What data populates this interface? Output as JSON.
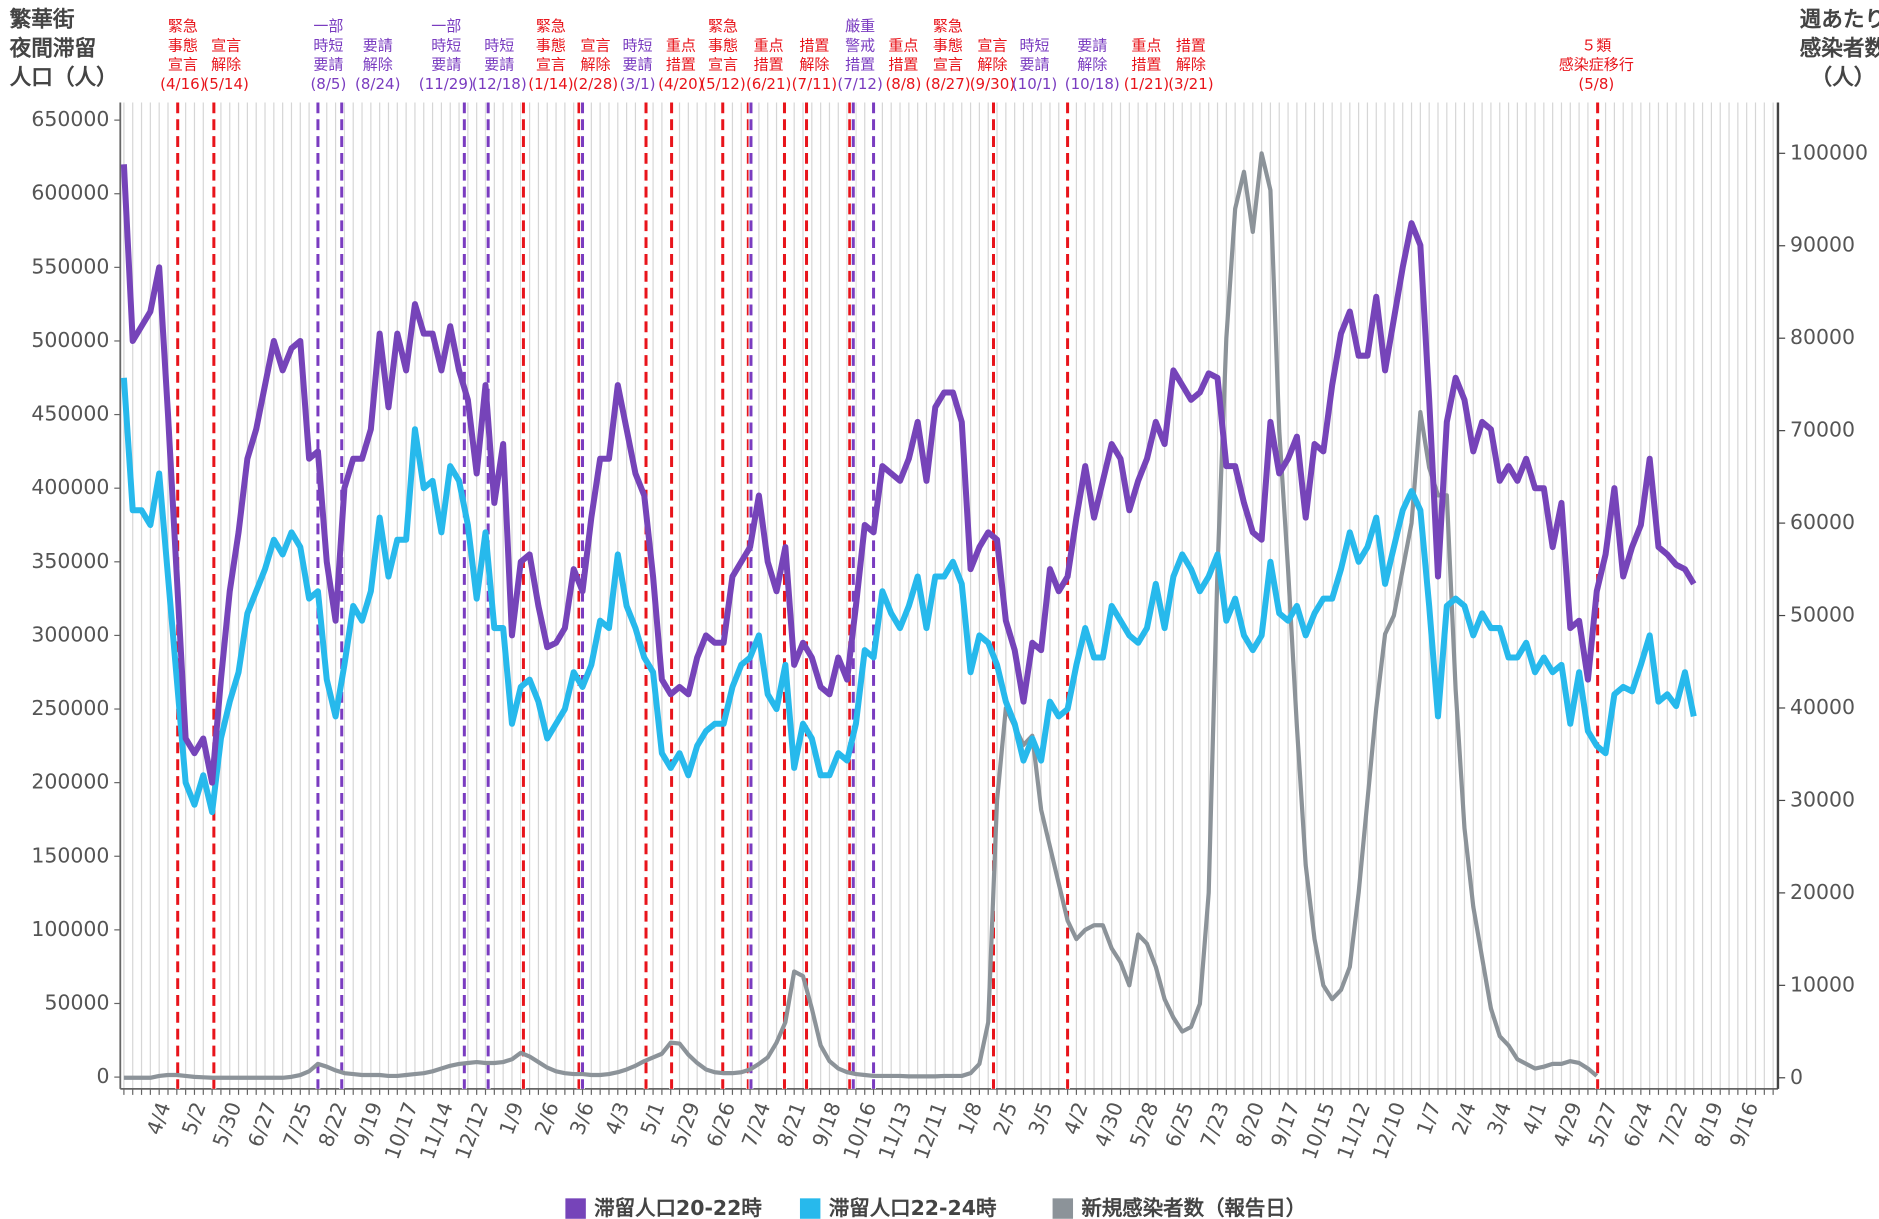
{
  "chart_data": {
    "type": "line",
    "y_label": [
      "繁華街",
      "夜間滞留",
      "人口（人）"
    ],
    "y2_label": [
      "週あたり",
      "感染者数",
      "（人）"
    ],
    "categories": [
      null,
      null,
      null,
      null,
      "4/4",
      null,
      null,
      null,
      "5/2",
      null,
      null,
      null,
      "5/30",
      null,
      null,
      null,
      "6/27",
      null,
      null,
      null,
      "7/25",
      null,
      null,
      null,
      "8/22",
      null,
      null,
      null,
      "9/19",
      null,
      null,
      null,
      "10/17",
      null,
      null,
      null,
      "11/14",
      null,
      null,
      null,
      "12/12",
      null,
      null,
      null,
      "1/9",
      null,
      null,
      null,
      "2/6",
      null,
      null,
      null,
      "3/6",
      null,
      null,
      null,
      "4/3",
      null,
      null,
      null,
      "5/1",
      null,
      null,
      null,
      "5/29",
      null,
      null,
      null,
      "6/26",
      null,
      null,
      null,
      "7/24",
      null,
      null,
      null,
      "8/21",
      null,
      null,
      null,
      "9/18",
      null,
      null,
      null,
      "10/16",
      null,
      null,
      null,
      "11/13",
      null,
      null,
      null,
      "12/11",
      null,
      null,
      null,
      "1/8",
      null,
      null,
      null,
      "2/5",
      null,
      null,
      null,
      "3/5",
      null,
      null,
      null,
      "4/2",
      null,
      null,
      null,
      "4/30",
      null,
      null,
      null,
      "5/28",
      null,
      null,
      null,
      "6/25",
      null,
      null,
      null,
      "7/23",
      null,
      null,
      null,
      "8/20",
      null,
      null,
      null,
      "9/17",
      null,
      null,
      null,
      "10/15",
      null,
      null,
      null,
      "11/12",
      null,
      null,
      null,
      "12/10",
      null,
      null,
      null,
      "1/7",
      null,
      null,
      null,
      "2/4",
      null,
      null,
      null,
      "3/4",
      null,
      null,
      null,
      "4/1",
      null,
      null,
      null,
      "4/29",
      null,
      null,
      null,
      "5/27",
      null,
      null,
      null,
      "6/24",
      null,
      null,
      null,
      "7/22",
      null,
      null,
      null,
      "8/19",
      null,
      null,
      null,
      "9/16",
      null,
      null,
      null
    ],
    "series": [
      {
        "name": "滞留人口20-22時",
        "color": "#7644b9",
        "values": [
          620000,
          500000,
          510000,
          520000,
          550000,
          450000,
          340000,
          230000,
          220000,
          230000,
          200000,
          270000,
          330000,
          370000,
          420000,
          440000,
          470000,
          500000,
          480000,
          495000,
          500000,
          420000,
          425000,
          350000,
          310000,
          400000,
          420000,
          420000,
          440000,
          505000,
          455000,
          505000,
          480000,
          525000,
          505000,
          505000,
          480000,
          510000,
          480000,
          460000,
          410000,
          470000,
          390000,
          430000,
          300000,
          350000,
          355000,
          320000,
          292000,
          295000,
          305000,
          345000,
          330000,
          380000,
          420000,
          420000,
          470000,
          440000,
          410000,
          395000,
          340000,
          270000,
          260000,
          265000,
          260000,
          285000,
          300000,
          295000,
          295000,
          340000,
          350000,
          360000,
          395000,
          350000,
          330000,
          360000,
          280000,
          295000,
          285000,
          265000,
          260000,
          285000,
          270000,
          320000,
          375000,
          370000,
          415000,
          410000,
          405000,
          420000,
          445000,
          405000,
          455000,
          465000,
          465000,
          445000,
          345000,
          360000,
          370000,
          365000,
          310000,
          290000,
          255000,
          295000,
          290000,
          345000,
          330000,
          340000,
          380000,
          415000,
          380000,
          405000,
          430000,
          420000,
          385000,
          405000,
          420000,
          445000,
          430000,
          480000,
          470000,
          460000,
          465000,
          478000,
          475000,
          415000,
          415000,
          390000,
          370000,
          365000,
          445000,
          410000,
          420000,
          435000,
          380000,
          430000,
          425000,
          470000,
          505000,
          520000,
          490000,
          490000,
          530000,
          480000,
          515000,
          550000,
          580000,
          565000,
          460000,
          340000,
          445000,
          475000,
          460000,
          425000,
          445000,
          440000,
          405000,
          415000,
          405000,
          420000,
          400000,
          400000,
          360000,
          390000,
          305000,
          310000,
          270000,
          330000,
          355000,
          400000,
          340000,
          360000,
          375000,
          420000,
          360000,
          355000,
          348000,
          345000,
          335000,
          null,
          null,
          null,
          null,
          null,
          null,
          null,
          null,
          null
        ]
      },
      {
        "name": "滞留人口22-24時",
        "color": "#27b9ec",
        "values": [
          475000,
          385000,
          385000,
          375000,
          410000,
          340000,
          270000,
          200000,
          185000,
          205000,
          180000,
          230000,
          255000,
          275000,
          315000,
          330000,
          345000,
          365000,
          355000,
          370000,
          360000,
          325000,
          330000,
          270000,
          245000,
          280000,
          320000,
          310000,
          330000,
          380000,
          340000,
          365000,
          365000,
          440000,
          400000,
          405000,
          370000,
          415000,
          405000,
          375000,
          325000,
          370000,
          305000,
          305000,
          240000,
          265000,
          270000,
          255000,
          230000,
          240000,
          250000,
          275000,
          265000,
          280000,
          310000,
          305000,
          355000,
          320000,
          305000,
          285000,
          275000,
          220000,
          210000,
          220000,
          205000,
          225000,
          235000,
          240000,
          240000,
          265000,
          280000,
          285000,
          300000,
          260000,
          250000,
          280000,
          210000,
          240000,
          230000,
          205000,
          205000,
          220000,
          215000,
          240000,
          290000,
          285000,
          330000,
          315000,
          305000,
          320000,
          340000,
          305000,
          340000,
          340000,
          350000,
          335000,
          275000,
          300000,
          295000,
          280000,
          255000,
          240000,
          215000,
          230000,
          215000,
          255000,
          245000,
          250000,
          280000,
          305000,
          285000,
          285000,
          320000,
          310000,
          300000,
          295000,
          305000,
          335000,
          305000,
          340000,
          355000,
          345000,
          330000,
          340000,
          355000,
          310000,
          325000,
          300000,
          290000,
          300000,
          350000,
          315000,
          310000,
          320000,
          300000,
          315000,
          325000,
          325000,
          345000,
          370000,
          350000,
          360000,
          380000,
          335000,
          360000,
          385000,
          398000,
          385000,
          320000,
          245000,
          320000,
          325000,
          320000,
          300000,
          315000,
          305000,
          305000,
          285000,
          285000,
          295000,
          275000,
          285000,
          275000,
          280000,
          240000,
          275000,
          235000,
          225000,
          220000,
          260000,
          265000,
          262000,
          280000,
          300000,
          255000,
          260000,
          252000,
          275000,
          245000,
          null,
          null,
          null,
          null,
          null,
          null,
          null,
          null,
          null
        ]
      },
      {
        "name": "新規感染者数（報告日）",
        "color": "#8c9399",
        "axis": "y2",
        "values": [
          0,
          0,
          0,
          0,
          200,
          300,
          300,
          200,
          100,
          50,
          0,
          0,
          0,
          0,
          0,
          0,
          0,
          0,
          0,
          100,
          300,
          700,
          1500,
          1200,
          800,
          500,
          400,
          300,
          300,
          300,
          200,
          200,
          300,
          400,
          500,
          700,
          1000,
          1300,
          1500,
          1600,
          1700,
          1600,
          1600,
          1700,
          2000,
          2700,
          2300,
          1700,
          1100,
          700,
          500,
          400,
          400,
          300,
          300,
          400,
          600,
          900,
          1300,
          1800,
          2200,
          2600,
          3800,
          3700,
          2500,
          1600,
          900,
          600,
          500,
          500,
          600,
          900,
          1500,
          2200,
          3800,
          6000,
          11500,
          11000,
          7500,
          3500,
          1800,
          1000,
          600,
          400,
          300,
          200,
          200,
          200,
          200,
          150,
          150,
          150,
          150,
          200,
          200,
          200,
          500,
          1500,
          6000,
          30000,
          40000,
          38000,
          36000,
          37000,
          29000,
          25000,
          21000,
          17000,
          15000,
          16000,
          16500,
          16500,
          14000,
          12500,
          10000,
          15500,
          14500,
          12000,
          8500,
          6500,
          5000,
          5500,
          8000,
          20000,
          55000,
          80000,
          94000,
          98000,
          91500,
          100000,
          96000,
          70000,
          55000,
          38000,
          23000,
          15000,
          10000,
          8500,
          9500,
          12000,
          20000,
          30000,
          40000,
          48000,
          50000,
          55000,
          60000,
          72000,
          66000,
          63000,
          63000,
          42000,
          27000,
          18500,
          13000,
          7500,
          4500,
          3500,
          2000,
          1500,
          1000,
          1200,
          1500,
          1500,
          1800,
          1600,
          1000,
          200,
          null,
          null,
          null,
          null,
          null,
          null,
          null,
          null,
          null,
          null,
          null,
          null,
          null,
          null,
          null,
          null,
          null,
          null,
          null,
          null
        ]
      }
    ],
    "ylim": [
      -8000,
      662000
    ],
    "yticks": [
      0,
      50000,
      100000,
      150000,
      200000,
      250000,
      300000,
      350000,
      400000,
      450000,
      500000,
      550000,
      600000,
      650000
    ],
    "y2lim": [
      -1200,
      105500
    ],
    "y2ticks": [
      0,
      10000,
      20000,
      30000,
      40000,
      50000,
      60000,
      70000,
      80000,
      90000,
      100000
    ],
    "annotations": [
      {
        "lines": [
          "緊急",
          "事態",
          "宣言"
        ],
        "date": "(4/16)",
        "color": "#e8141b",
        "x": 6.1
      },
      {
        "lines": [
          "宣言",
          "解除"
        ],
        "date": "(5/14)",
        "color": "#e8141b",
        "x": 10.2
      },
      {
        "lines": [
          "一部",
          "時短",
          "要請"
        ],
        "date": "(8/5)",
        "color": "#7a3cc0",
        "x": 22.0
      },
      {
        "lines": [
          "要請",
          "解除"
        ],
        "date": "(8/24)",
        "color": "#7a3cc0",
        "x": 24.7
      },
      {
        "lines": [
          "一部",
          "時短",
          "要請"
        ],
        "date": "(11/29)",
        "color": "#7a3cc0",
        "x": 38.6
      },
      {
        "lines": [
          "時短",
          "要請"
        ],
        "date": "(12/18)",
        "color": "#7a3cc0",
        "x": 41.3
      },
      {
        "lines": [
          "緊急",
          "事態",
          "宣言"
        ],
        "date": "(1/14)",
        "color": "#e8141b",
        "x": 45.3
      },
      {
        "lines": [
          "宣言",
          "解除"
        ],
        "date": "(2/28)",
        "color": "#e8141b",
        "x": 51.6
      },
      {
        "lines": [
          "時短",
          "要請"
        ],
        "date": "(3/1)",
        "color": "#7a3cc0",
        "x": 52.0
      },
      {
        "lines": [
          "重点",
          "措置"
        ],
        "date": "(4/20)",
        "color": "#e8141b",
        "x": 59.2
      },
      {
        "lines": [
          "緊急",
          "事態",
          "宣言"
        ],
        "date": "(5/12)",
        "color": "#e8141b",
        "x": 62.1
      },
      {
        "lines": [
          "重点",
          "措置"
        ],
        "date": "(6/21)",
        "color": "#e8141b",
        "x": 67.9
      },
      {
        "lines": [
          "措置",
          "解除"
        ],
        "date": "(7/11)",
        "color": "#e8141b",
        "x": 70.8
      },
      {
        "lines": [
          "厳重",
          "警戒",
          "措置"
        ],
        "date": "(7/12)",
        "color": "#7a3cc0",
        "x": 71.1
      },
      {
        "lines": [
          "重点",
          "措置"
        ],
        "date": "(8/8)",
        "color": "#e8141b",
        "x": 74.9
      },
      {
        "lines": [
          "緊急",
          "事態",
          "宣言"
        ],
        "date": "(8/27)",
        "color": "#e8141b",
        "x": 77.4
      },
      {
        "lines": [
          "宣言",
          "解除"
        ],
        "date": "(9/30)",
        "color": "#e8141b",
        "x": 82.3
      },
      {
        "lines": [
          "時短",
          "要請"
        ],
        "date": "(10/1)",
        "color": "#7a3cc0",
        "x": 82.7
      },
      {
        "lines": [
          "要請",
          "解除"
        ],
        "date": "(10/18)",
        "color": "#7a3cc0",
        "x": 85.0
      },
      {
        "lines": [
          "重点",
          "措置"
        ],
        "date": "(1/21)",
        "color": "#e8141b",
        "x": 98.6
      },
      {
        "lines": [
          "措置",
          "解除"
        ],
        "date": "(3/21)",
        "color": "#e8141b",
        "x": 107.0
      },
      {
        "lines": [
          "５類",
          "感染症移行"
        ],
        "date": "(5/8)",
        "color": "#e8141b",
        "x": 167.1
      }
    ]
  }
}
